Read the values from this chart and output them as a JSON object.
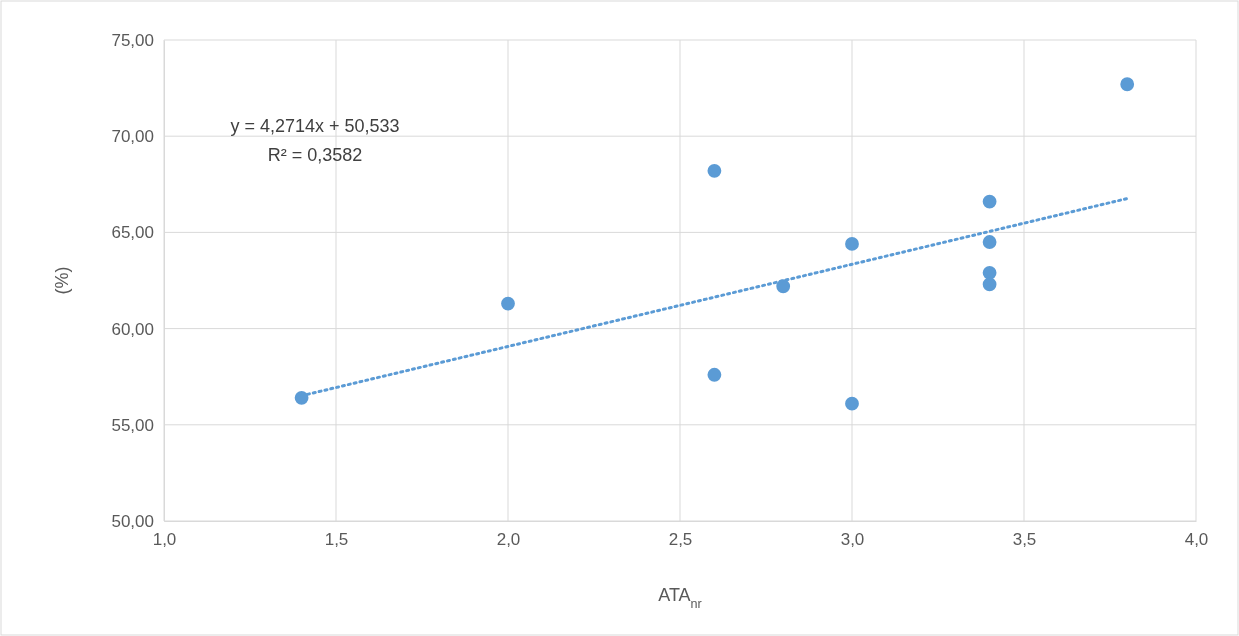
{
  "chart_data": {
    "type": "scatter",
    "xlabel": "ATA$_{nr}$",
    "ylabel": "(%)",
    "xlim": [
      1,
      4
    ],
    "ylim": [
      50,
      75
    ],
    "xticks": [
      {
        "value": 1,
        "label": "1,0"
      },
      {
        "value": 1.5,
        "label": "1,5"
      },
      {
        "value": 2,
        "label": "2,0"
      },
      {
        "value": 2.5,
        "label": "2,5"
      },
      {
        "value": 3,
        "label": "3,0"
      },
      {
        "value": 3.5,
        "label": "3,5"
      },
      {
        "value": 4,
        "label": "4,0"
      }
    ],
    "yticks": [
      {
        "value": 50,
        "label": "50,00"
      },
      {
        "value": 55,
        "label": "55,00"
      },
      {
        "value": 60,
        "label": "60,00"
      },
      {
        "value": 65,
        "label": "65,00"
      },
      {
        "value": 70,
        "label": "70,00"
      },
      {
        "value": 75,
        "label": "75,00"
      }
    ],
    "grid": true,
    "annotations": [
      "y = 4,2714x + 50,533",
      "R² = 0,3582"
    ],
    "series": [
      {
        "color": "#5b9bd5",
        "marker": "circle",
        "x": [
          1.4,
          2.0,
          2.6,
          2.6,
          2.8,
          3.0,
          3.0,
          3.4,
          3.4,
          3.4,
          3.4,
          3.8
        ],
        "values": [
          56.4,
          61.3,
          68.2,
          57.6,
          62.2,
          64.4,
          56.1,
          66.6,
          64.5,
          62.9,
          62.3,
          72.7
        ]
      },
      {
        "type": "line",
        "color": "#5b9bd5",
        "line_style": "dotted",
        "marker": "none",
        "x": [
          1.4,
          3.8
        ],
        "values": [
          56.51,
          66.76
        ]
      }
    ]
  }
}
